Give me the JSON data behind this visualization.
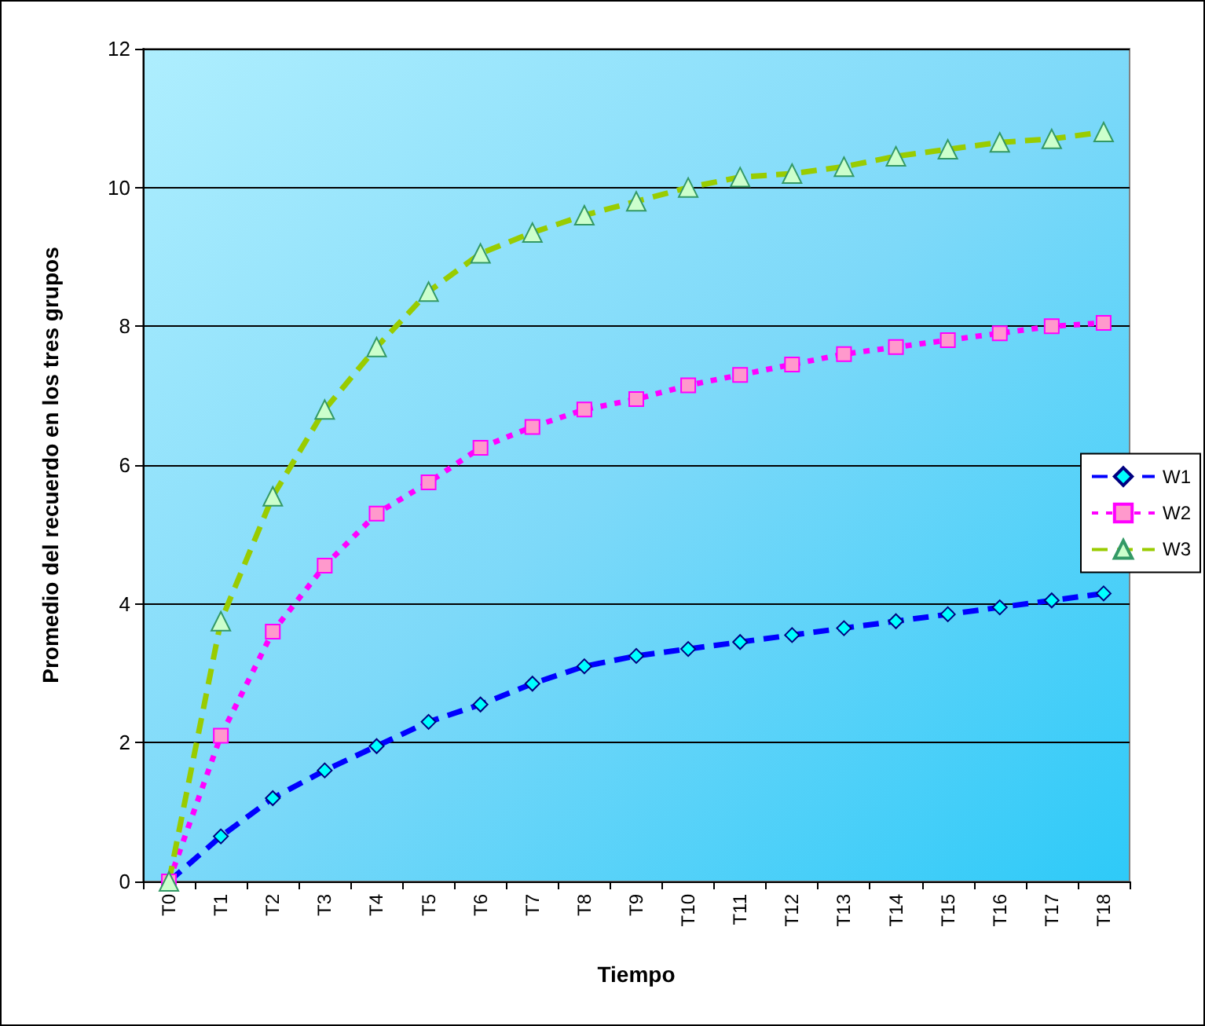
{
  "chart_data": {
    "type": "line",
    "xlabel": "Tiempo",
    "ylabel": "Promedio del recuerdo en los tres grupos",
    "categories": [
      "T0",
      "T1",
      "T2",
      "T3",
      "T4",
      "T5",
      "T6",
      "T7",
      "T8",
      "T9",
      "T10",
      "T11",
      "T12",
      "T13",
      "T14",
      "T15",
      "T16",
      "T17",
      "T18"
    ],
    "series": [
      {
        "name": "W1",
        "color": "#0000ff",
        "marker": "diamond",
        "line_style": "dashed",
        "values": [
          0,
          0.65,
          1.2,
          1.6,
          1.95,
          2.3,
          2.55,
          2.85,
          3.1,
          3.25,
          3.35,
          3.45,
          3.55,
          3.65,
          3.75,
          3.85,
          3.95,
          4.05,
          4.15
        ]
      },
      {
        "name": "W2",
        "color": "#ff00ff",
        "marker": "square",
        "line_style": "dotted",
        "values": [
          0,
          2.1,
          3.6,
          4.55,
          5.3,
          5.75,
          6.25,
          6.55,
          6.8,
          6.95,
          7.15,
          7.3,
          7.45,
          7.6,
          7.7,
          7.8,
          7.9,
          8.0,
          8.05
        ]
      },
      {
        "name": "W3",
        "color": "#99cc00",
        "marker": "triangle",
        "line_style": "dashed",
        "values": [
          0,
          3.75,
          5.55,
          6.8,
          7.7,
          8.5,
          9.05,
          9.35,
          9.6,
          9.8,
          10.0,
          10.15,
          10.2,
          10.3,
          10.45,
          10.55,
          10.65,
          10.7,
          10.8
        ]
      }
    ],
    "ylim": [
      0,
      12
    ],
    "yticks": [
      0,
      2,
      4,
      6,
      8,
      10,
      12
    ],
    "grid": "y",
    "legend": "right"
  }
}
